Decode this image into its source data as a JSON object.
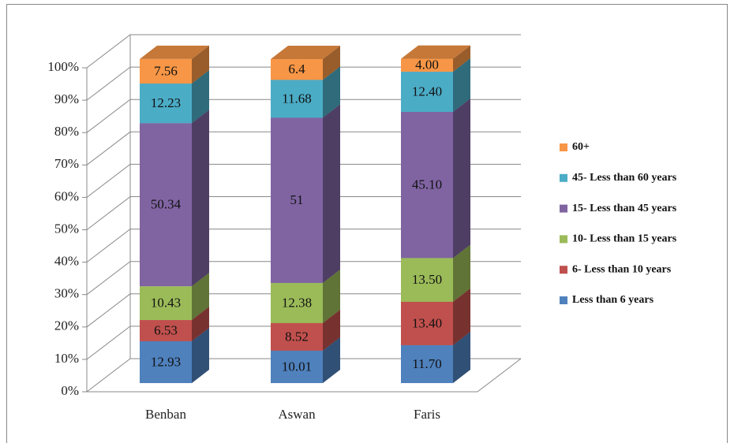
{
  "chart_data": {
    "type": "bar3d_stacked",
    "categories": [
      "Benban",
      "Aswan",
      "Faris"
    ],
    "series": [
      {
        "name": "Less than 6 years",
        "color": "#4f81bd",
        "values": [
          12.93,
          10.01,
          11.7
        ],
        "value_labels": [
          "12.93",
          "10.01",
          "11.70"
        ]
      },
      {
        "name": "6- Less than 10 years",
        "color": "#c0504d",
        "values": [
          6.53,
          8.52,
          13.4
        ],
        "value_labels": [
          "6.53",
          "8.52",
          "13.40"
        ]
      },
      {
        "name": "10- Less than 15 years",
        "color": "#9bbb59",
        "values": [
          10.43,
          12.38,
          13.5
        ],
        "value_labels": [
          "10.43",
          "12.38",
          "13.50"
        ]
      },
      {
        "name": "15- Less than 45 years",
        "color": "#8064a2",
        "values": [
          50.34,
          51,
          45.1
        ],
        "value_labels": [
          "50.34",
          "51",
          "45.10"
        ]
      },
      {
        "name": "45- Less than 60 years",
        "color": "#4bacc6",
        "values": [
          12.23,
          11.68,
          12.4
        ],
        "value_labels": [
          "12.23",
          "11.68",
          "12.40"
        ]
      },
      {
        "name": "60+",
        "color": "#f79646",
        "values": [
          7.56,
          6.4,
          4.0
        ],
        "value_labels": [
          "7.56",
          "6.4",
          "4.00"
        ]
      }
    ],
    "ylim": [
      0,
      100
    ],
    "yticks": [
      {
        "value": 0,
        "label": "0%"
      },
      {
        "value": 10,
        "label": "10%"
      },
      {
        "value": 20,
        "label": "20%"
      },
      {
        "value": 30,
        "label": "30%"
      },
      {
        "value": 40,
        "label": "40%"
      },
      {
        "value": 50,
        "label": "50%"
      },
      {
        "value": 60,
        "label": "60%"
      },
      {
        "value": 70,
        "label": "70%"
      },
      {
        "value": 80,
        "label": "80%"
      },
      {
        "value": 90,
        "label": "90%"
      },
      {
        "value": 100,
        "label": "100%"
      }
    ],
    "grid": true,
    "legend": "right"
  }
}
